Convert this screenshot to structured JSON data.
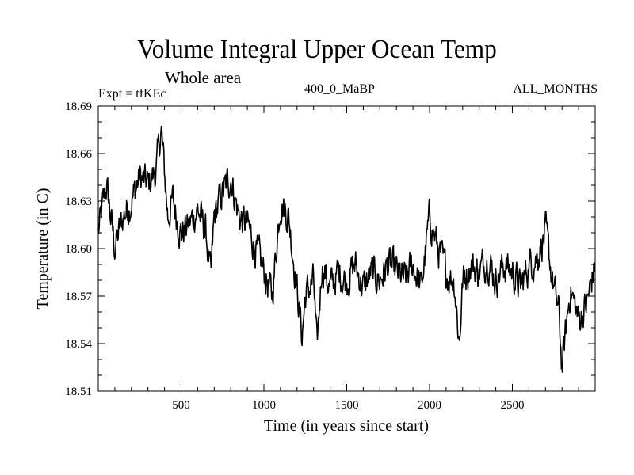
{
  "chart_data": {
    "type": "line",
    "title": "Volume Integral Upper Ocean Temp",
    "subtitle": "Whole area",
    "annotations": {
      "left": "Expt = tfKEc",
      "center": "400_0_MaBP",
      "right": "ALL_MONTHS"
    },
    "xlabel": "Time (in years since start)",
    "ylabel": "Temperature (in C)",
    "xlim": [
      0,
      3000
    ],
    "ylim": [
      18.51,
      18.69
    ],
    "xticks": [
      500,
      1000,
      1500,
      2000,
      2500
    ],
    "yticks": [
      "18.51",
      "18.54",
      "18.57",
      "18.60",
      "18.63",
      "18.66",
      "18.69"
    ],
    "grid": false,
    "series": [
      {
        "color": "#000000",
        "x": [
          0,
          50,
          100,
          150,
          200,
          250,
          300,
          350,
          380,
          420,
          450,
          500,
          550,
          600,
          650,
          680,
          700,
          750,
          800,
          850,
          900,
          950,
          1000,
          1050,
          1100,
          1150,
          1200,
          1230,
          1250,
          1300,
          1320,
          1350,
          1400,
          1450,
          1500,
          1550,
          1600,
          1650,
          1700,
          1750,
          1800,
          1850,
          1900,
          1950,
          2000,
          2050,
          2100,
          2150,
          2180,
          2200,
          2250,
          2300,
          2350,
          2400,
          2450,
          2500,
          2550,
          2600,
          2650,
          2700,
          2750,
          2780,
          2800,
          2850,
          2900,
          2950,
          3000
        ],
        "values": [
          18.61,
          18.64,
          18.6,
          18.62,
          18.63,
          18.645,
          18.64,
          18.65,
          18.675,
          18.62,
          18.63,
          18.61,
          18.615,
          18.625,
          18.61,
          18.58,
          18.62,
          18.635,
          18.645,
          18.62,
          18.615,
          18.6,
          18.585,
          18.57,
          18.63,
          18.62,
          18.575,
          18.545,
          18.57,
          18.58,
          18.535,
          18.59,
          18.575,
          18.585,
          18.58,
          18.59,
          18.575,
          18.585,
          18.58,
          18.59,
          18.585,
          18.58,
          18.59,
          18.575,
          18.62,
          18.6,
          18.585,
          18.58,
          18.54,
          18.58,
          18.59,
          18.585,
          18.595,
          18.58,
          18.59,
          18.585,
          18.575,
          18.59,
          18.595,
          18.61,
          18.575,
          18.56,
          18.525,
          18.575,
          18.555,
          18.565,
          18.59
        ]
      }
    ]
  }
}
